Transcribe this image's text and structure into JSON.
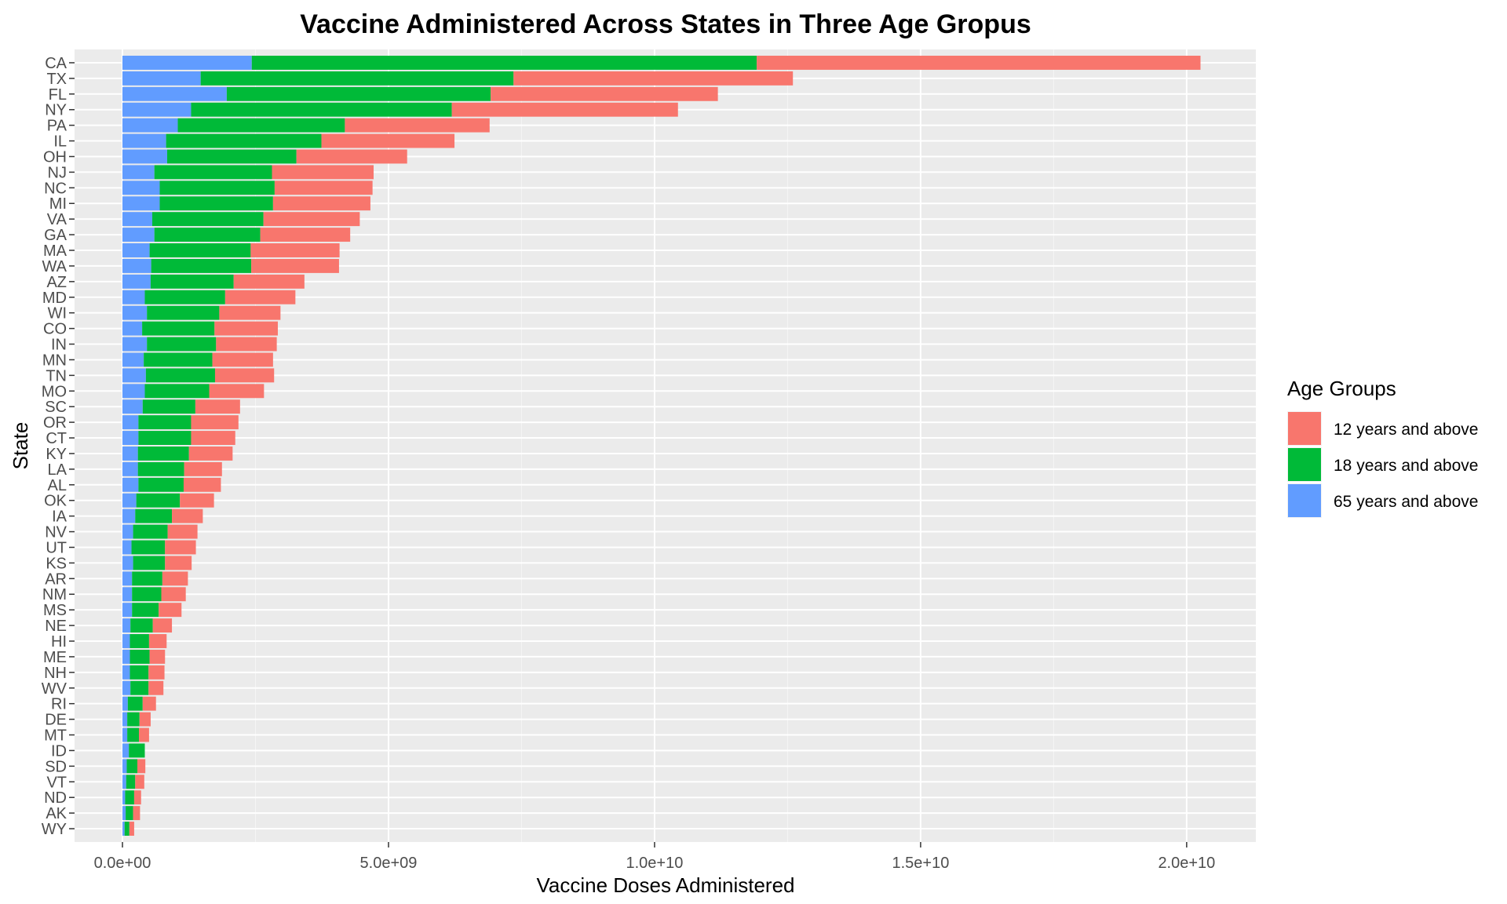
{
  "chart_data": {
    "type": "bar",
    "orientation": "horizontal",
    "stacked": true,
    "title": "Vaccine Administered Across States in Three Age Gropus",
    "xlabel": "Vaccine Doses Administered",
    "ylabel": "State",
    "xlim": [
      -900000000,
      21300000000
    ],
    "xticks": [
      0,
      5000000000,
      10000000000,
      15000000000,
      20000000000
    ],
    "xtick_labels": [
      "0.0e+00",
      "5.0e+09",
      "1.0e+10",
      "1.5e+10",
      "2.0e+10"
    ],
    "grid": true,
    "legend": {
      "title": "Age Groups",
      "position": "right"
    },
    "categories": [
      "CA",
      "TX",
      "FL",
      "NY",
      "PA",
      "IL",
      "OH",
      "NJ",
      "NC",
      "MI",
      "VA",
      "GA",
      "MA",
      "WA",
      "AZ",
      "MD",
      "WI",
      "CO",
      "IN",
      "MN",
      "TN",
      "MO",
      "SC",
      "OR",
      "CT",
      "KY",
      "LA",
      "AL",
      "OK",
      "IA",
      "NV",
      "UT",
      "KS",
      "AR",
      "NM",
      "MS",
      "NE",
      "HI",
      "ME",
      "NH",
      "WV",
      "RI",
      "DE",
      "MT",
      "ID",
      "SD",
      "VT",
      "ND",
      "AK",
      "WY"
    ],
    "series": [
      {
        "name": "65 years and above",
        "color": "#619CFF",
        "values": [
          2430000000,
          1470000000,
          1960000000,
          1290000000,
          1040000000,
          820000000,
          840000000,
          600000000,
          700000000,
          700000000,
          560000000,
          600000000,
          510000000,
          540000000,
          530000000,
          420000000,
          460000000,
          370000000,
          460000000,
          400000000,
          440000000,
          420000000,
          380000000,
          300000000,
          300000000,
          290000000,
          290000000,
          300000000,
          260000000,
          240000000,
          200000000,
          170000000,
          200000000,
          180000000,
          180000000,
          180000000,
          150000000,
          140000000,
          140000000,
          140000000,
          150000000,
          100000000,
          90000000,
          90000000,
          120000000,
          80000000,
          70000000,
          50000000,
          60000000,
          40000000
        ]
      },
      {
        "name": "18 years and above",
        "color": "#00BA38",
        "values": [
          9490000000,
          5880000000,
          4960000000,
          4900000000,
          3140000000,
          2920000000,
          2430000000,
          2210000000,
          2160000000,
          2130000000,
          2090000000,
          1990000000,
          1900000000,
          1880000000,
          1560000000,
          1510000000,
          1360000000,
          1360000000,
          1300000000,
          1290000000,
          1300000000,
          1210000000,
          990000000,
          990000000,
          990000000,
          960000000,
          870000000,
          850000000,
          820000000,
          690000000,
          650000000,
          630000000,
          600000000,
          570000000,
          550000000,
          500000000,
          420000000,
          360000000,
          370000000,
          350000000,
          340000000,
          280000000,
          230000000,
          220000000,
          300000000,
          200000000,
          170000000,
          170000000,
          140000000,
          90000000
        ]
      },
      {
        "name": "12 years and above",
        "color": "#F8766D",
        "values": [
          8340000000,
          5250000000,
          4270000000,
          4250000000,
          2720000000,
          2500000000,
          2080000000,
          1910000000,
          1840000000,
          1830000000,
          1810000000,
          1690000000,
          1670000000,
          1650000000,
          1330000000,
          1320000000,
          1150000000,
          1190000000,
          1140000000,
          1140000000,
          1110000000,
          1030000000,
          840000000,
          890000000,
          830000000,
          820000000,
          710000000,
          700000000,
          640000000,
          580000000,
          560000000,
          580000000,
          500000000,
          480000000,
          460000000,
          430000000,
          360000000,
          330000000,
          290000000,
          300000000,
          280000000,
          250000000,
          210000000,
          190000000,
          0,
          150000000,
          170000000,
          130000000,
          130000000,
          90000000
        ]
      }
    ]
  }
}
